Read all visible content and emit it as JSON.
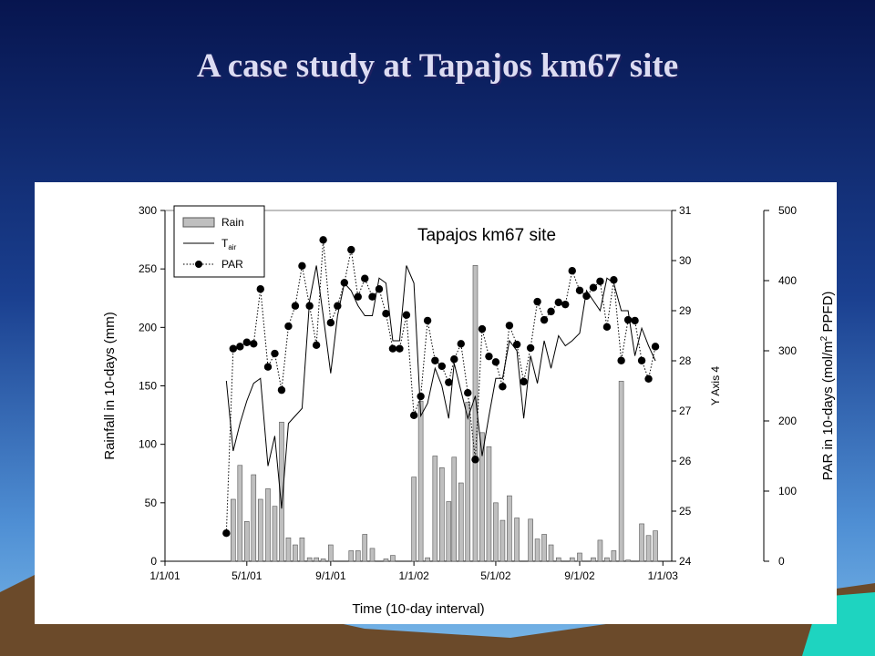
{
  "slide_title": "A case study at Tapajos km67 site",
  "chart_data": {
    "type": "combo",
    "title": "Tapajos km67 site",
    "x_label": "Time (10-day interval)",
    "y_label": "Rainfall in 10-days (mm)",
    "y2_label": "Y Axis 4",
    "y3_label": [
      "PAR in 10-days (mol/m",
      "2",
      " PPFD)"
    ],
    "x": [
      "2001-04-01",
      "2001-04-11",
      "2001-04-21",
      "2001-05-01",
      "2001-05-11",
      "2001-05-21",
      "2001-06-01",
      "2001-06-11",
      "2001-06-21",
      "2001-07-01",
      "2001-07-11",
      "2001-07-21",
      "2001-08-01",
      "2001-08-11",
      "2001-08-21",
      "2001-09-01",
      "2001-09-11",
      "2001-09-21",
      "2001-10-01",
      "2001-10-11",
      "2001-10-21",
      "2001-11-01",
      "2001-11-11",
      "2001-11-21",
      "2001-12-01",
      "2001-12-11",
      "2001-12-21",
      "2002-01-01",
      "2002-01-11",
      "2002-01-21",
      "2002-02-01",
      "2002-02-11",
      "2002-02-21",
      "2002-03-01",
      "2002-03-11",
      "2002-03-21",
      "2002-04-01",
      "2002-04-11",
      "2002-04-21",
      "2002-05-01",
      "2002-05-11",
      "2002-05-21",
      "2002-06-01",
      "2002-06-11",
      "2002-06-21",
      "2002-07-01",
      "2002-07-11",
      "2002-07-21",
      "2002-08-01",
      "2002-08-11",
      "2002-08-21",
      "2002-09-01",
      "2002-09-11",
      "2002-09-21",
      "2002-10-01",
      "2002-10-11",
      "2002-10-21",
      "2002-11-01",
      "2002-11-11",
      "2002-11-21",
      "2002-12-01",
      "2002-12-11",
      "2002-12-21"
    ],
    "xlim": [
      "2001-01-01",
      "2003-01-14"
    ],
    "xticks": [
      {
        "value": "2001-01-01",
        "label": "1/1/01"
      },
      {
        "value": "2001-05-01",
        "label": "5/1/01"
      },
      {
        "value": "2001-09-01",
        "label": "9/1/01"
      },
      {
        "value": "2002-01-01",
        "label": "1/1/02"
      },
      {
        "value": "2002-05-01",
        "label": "5/1/02"
      },
      {
        "value": "2002-09-01",
        "label": "9/1/02"
      },
      {
        "value": "2003-01-01",
        "label": "1/1/03"
      }
    ],
    "ylim": [
      0,
      300
    ],
    "yticks": [
      0,
      50,
      100,
      150,
      200,
      250,
      300
    ],
    "y2lim": [
      24,
      31
    ],
    "y2ticks": [
      24,
      25,
      26,
      27,
      28,
      29,
      30,
      31
    ],
    "y3lim": [
      0,
      500
    ],
    "y3ticks": [
      0,
      100,
      200,
      300,
      400,
      500
    ],
    "series": [
      {
        "name": "Rain",
        "type": "bar",
        "color": "#bfbfbf",
        "values": [
          0,
          53,
          82,
          34,
          74,
          53,
          62,
          47,
          119,
          20,
          14,
          20,
          3,
          3,
          2,
          14,
          0,
          0,
          9,
          9,
          23,
          11,
          0,
          2,
          5,
          0,
          0,
          72,
          137,
          3,
          90,
          80,
          51,
          89,
          67,
          136,
          253,
          110,
          98,
          50,
          35,
          56,
          37,
          0,
          36,
          19,
          23,
          14,
          3,
          0,
          3,
          7,
          0,
          3,
          18,
          3,
          9,
          154,
          1,
          0,
          32,
          22,
          26
        ]
      },
      {
        "name": "T",
        "name_sub": "air",
        "type": "line",
        "axis": "y2",
        "color": "#000000",
        "values": [
          27.6,
          26.2,
          26.75,
          27.2,
          27.55,
          27.65,
          25.9,
          26.5,
          25.05,
          26.75,
          26.9,
          27.05,
          29.2,
          29.9,
          28.9,
          27.75,
          28.9,
          29.55,
          29.4,
          29.1,
          28.9,
          28.9,
          29.65,
          29.55,
          28.4,
          28.4,
          29.9,
          29.55,
          26.9,
          27.15,
          27.85,
          27.5,
          26.85,
          27.95,
          27.4,
          26.85,
          27.3,
          26.1,
          26.9,
          27.65,
          27.65,
          28.4,
          28.2,
          26.85,
          28.1,
          27.55,
          28.4,
          27.85,
          28.5,
          28.3,
          28.4,
          28.55,
          29.4,
          29.2,
          29.0,
          29.65,
          29.55,
          29.0,
          29.0,
          28.1,
          28.65,
          28.3,
          28.0
        ]
      },
      {
        "name": "PAR",
        "type": "dotted",
        "axis": "y3",
        "color": "#000000",
        "values": [
          40,
          303,
          306,
          312,
          310,
          388,
          277,
          296,
          244,
          335,
          364,
          421,
          364,
          308,
          458,
          340,
          364,
          397,
          444,
          377,
          403,
          377,
          388,
          353,
          303,
          303,
          351,
          208,
          235,
          343,
          286,
          278,
          255,
          288,
          310,
          240,
          145,
          331,
          292,
          284,
          249,
          336,
          309,
          256,
          304,
          370,
          344,
          356,
          369,
          366,
          414,
          386,
          378,
          390,
          399,
          334,
          401,
          286,
          344,
          343,
          286,
          260,
          306
        ]
      }
    ]
  }
}
